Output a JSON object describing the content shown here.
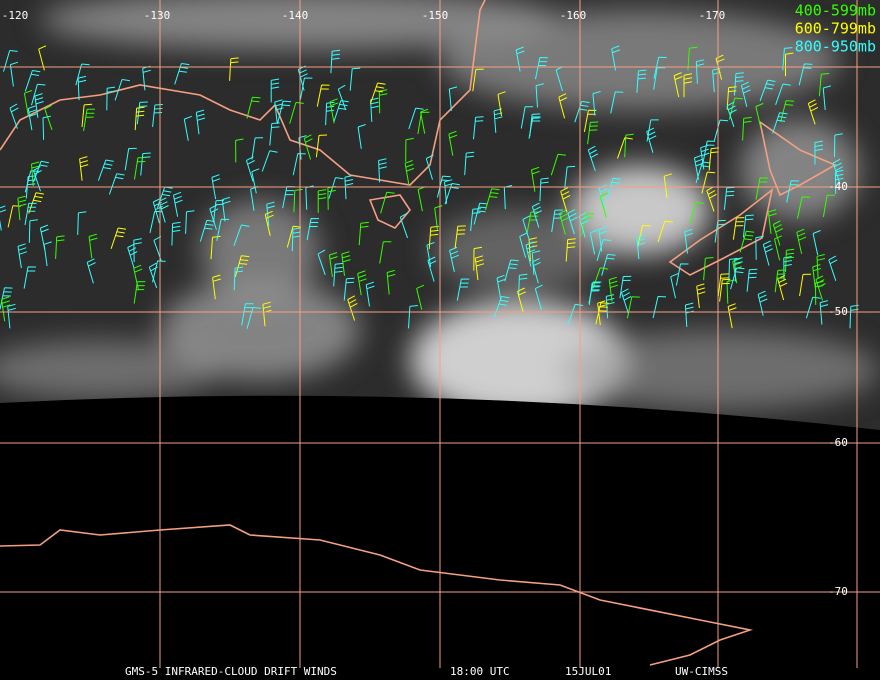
{
  "longitude_labels": [
    "-120",
    "-130",
    "-140",
    "-150",
    "-160",
    "-170"
  ],
  "latitude_labels": [
    "-40",
    "-50",
    "-60",
    "-70"
  ],
  "legend": [
    {
      "label": "400-599mb",
      "color": "#33ff00"
    },
    {
      "label": "600-799mb",
      "color": "#ffff00"
    },
    {
      "label": "800-950mb",
      "color": "#33ffff"
    }
  ],
  "footer": [
    "GMS-5 INFRARED-CLOUD DRIFT WINDS",
    "18:00 UTC",
    "15JUL01",
    "UW-CIMSS"
  ]
}
